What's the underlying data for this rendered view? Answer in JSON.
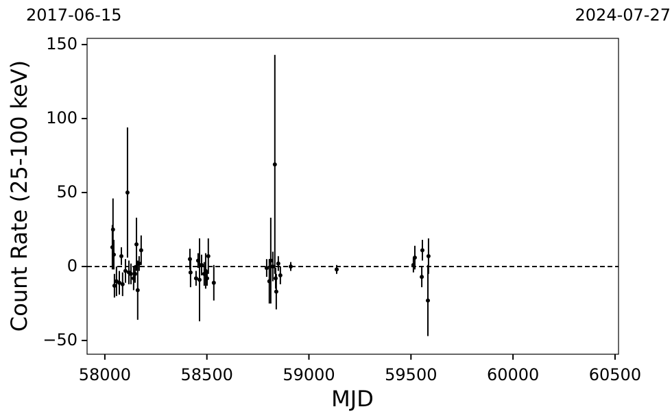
{
  "chart_data": {
    "type": "scatter",
    "xlabel": "MJD",
    "ylabel": "Count Rate (25-100 keV)",
    "top_labels": [
      "2017-06-15",
      "2024-07-27"
    ],
    "color": "#000000",
    "reference_line": 0,
    "x": [
      58037,
      58040,
      58044,
      58047,
      58057,
      58071,
      58081,
      58087,
      58101,
      58111,
      58118,
      58128,
      58141,
      58148,
      58155,
      58161,
      58168,
      58178,
      58417,
      58420,
      58447,
      58457,
      58464,
      58474,
      58487,
      58494,
      58501,
      58507,
      58534,
      58793,
      58806,
      58813,
      58823,
      58833,
      58837,
      58840,
      58850,
      58860,
      58911,
      59136,
      59512,
      59519,
      59553,
      59556,
      59583,
      59586
    ],
    "values": [
      13,
      25,
      8,
      -13,
      -10,
      -11,
      7,
      -12,
      -3,
      50,
      -4,
      -5,
      -8,
      -5,
      15,
      -16,
      2,
      11,
      5,
      -4,
      -8,
      4,
      -9,
      1,
      -5,
      -3,
      -8,
      7,
      -11,
      -1,
      -10,
      4,
      0,
      69,
      -8,
      -17,
      2,
      -6,
      0,
      -2,
      1,
      6,
      -7,
      11,
      -23,
      7
    ],
    "errors": [
      15,
      21,
      10,
      8,
      10,
      8,
      6,
      8,
      8,
      44,
      8,
      7,
      8,
      6,
      18,
      20,
      5,
      10,
      7,
      10,
      5,
      5,
      28,
      7,
      8,
      12,
      5,
      12,
      12,
      6,
      15,
      29,
      10,
      74,
      7,
      12,
      5,
      6,
      3,
      3,
      5,
      8,
      7,
      7,
      24,
      12
    ],
    "xlim": [
      57913,
      60517
    ],
    "ylim": [
      -59.3,
      154.2
    ],
    "xticks": [
      58000,
      58500,
      59000,
      59500,
      60000,
      60500
    ],
    "yticks": [
      -50,
      0,
      50,
      100,
      150
    ]
  }
}
